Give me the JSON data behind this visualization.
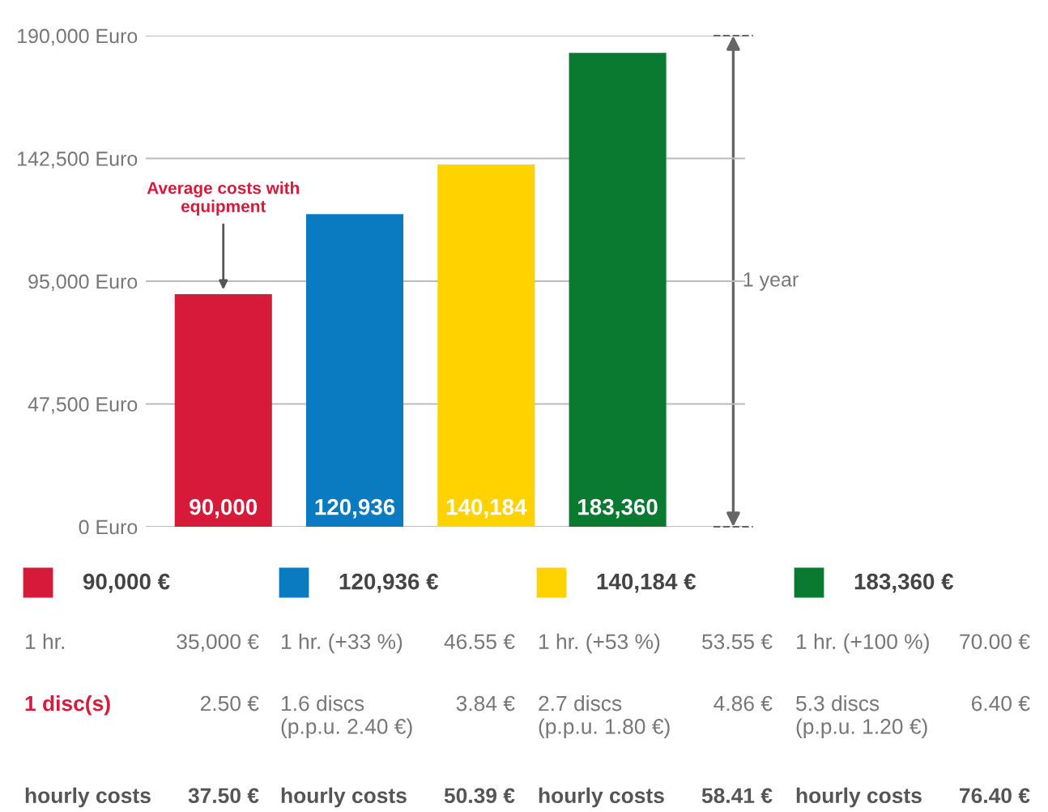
{
  "chart_data": {
    "type": "bar",
    "categories": [
      null,
      null,
      null,
      null
    ],
    "values": [
      90000,
      120936,
      140184,
      183360
    ],
    "colors": [
      "#d7193a",
      "#0a7bc1",
      "#ffd200",
      "#0a7a30"
    ],
    "value_labels": [
      "90,000",
      "120,936",
      "140,184",
      "183,360"
    ],
    "ylim": [
      0,
      190000
    ],
    "yticks": [
      {
        "value": 0,
        "label": "0 Euro"
      },
      {
        "value": 47500,
        "label": "47,500 Euro"
      },
      {
        "value": 95000,
        "label": "95,000 Euro"
      },
      {
        "value": 142500,
        "label": "142,500 Euro"
      },
      {
        "value": 190000,
        "label": "190,000 Euro"
      }
    ],
    "grid": "y",
    "annotations": [
      {
        "text": "Average costs with\nequipment",
        "y": 90000
      },
      "1 year",
      "90,000 €",
      "1 hr.",
      "35,000 €",
      "1 disc(s)",
      "2.50 €",
      "hourly costs",
      "37.50 €",
      "120,936 €",
      "1 hr. (+33 %)",
      "46.55 €",
      "1.6 discs\n(p.p.u. 2.40 €)",
      "3.84 €",
      "hourly costs",
      "50.39 €",
      "140,184 €",
      "1 hr. (+53 %)",
      "53.55 €",
      "2.7 discs\n(p.p.u. 1.80 €)",
      "4.86 €",
      "hourly costs",
      "58.41 €",
      "183,360 €",
      "1 hr. (+100 %)",
      "70.00 €",
      "5.3 discs\n(p.p.u. 1.20 €)",
      "6.40 €",
      "hourly costs",
      "76.40 €"
    ]
  }
}
